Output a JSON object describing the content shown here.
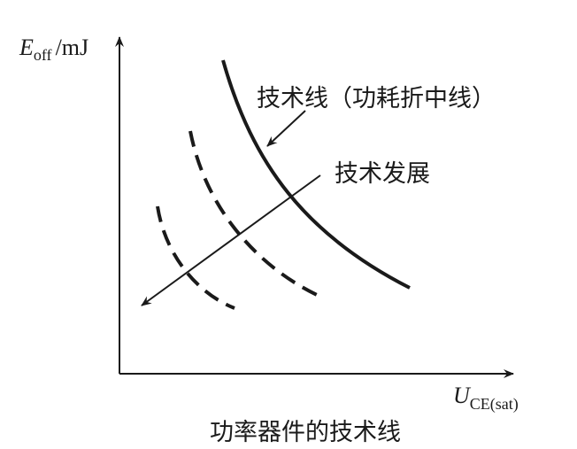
{
  "y_axis_label": {
    "symbol": "E",
    "subscript": "off",
    "unit": "/mJ"
  },
  "x_axis_label": {
    "symbol": "U",
    "subscript": "CE(sat)"
  },
  "annotations": {
    "tech_line": "技术线（功耗折中线）",
    "tech_progress": "技术发展"
  },
  "caption": "功率器件的技术线"
}
